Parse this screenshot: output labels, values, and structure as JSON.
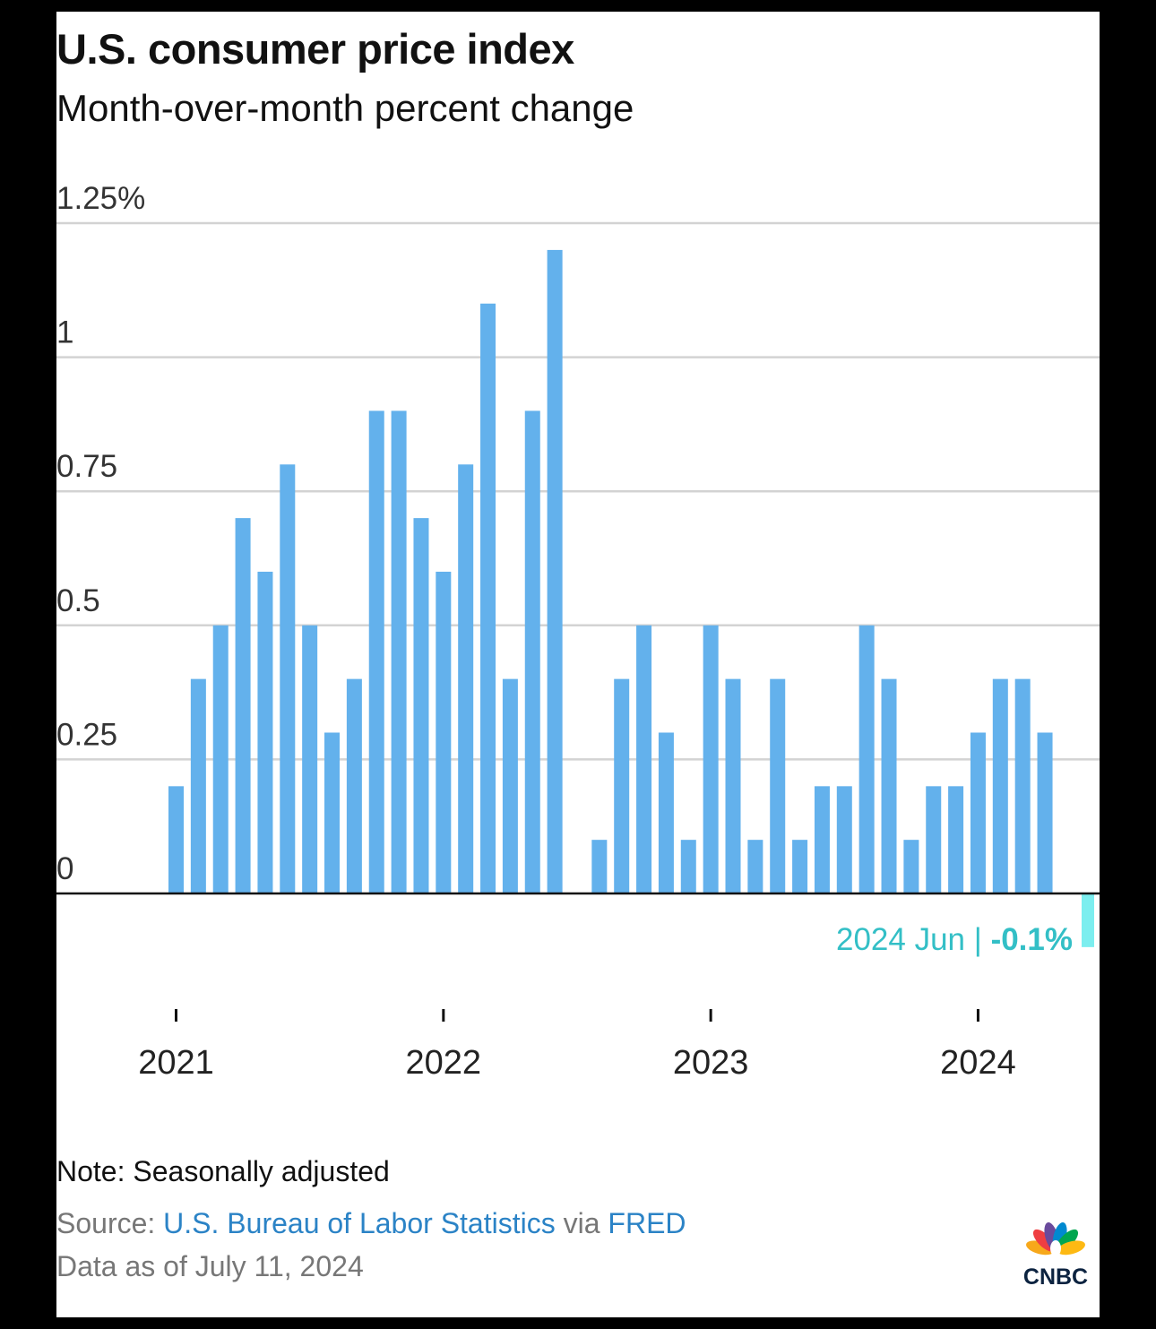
{
  "title": "U.S. consumer price index",
  "subtitle": "Month-over-month percent change",
  "note": "Note: Seasonally adjusted",
  "source": {
    "prefix": "Source: ",
    "agency": "U.S. Bureau of Labor Statistics",
    "via": " via ",
    "fred": "FRED"
  },
  "as_of": "Data as of July 11, 2024",
  "logo_text": "CNBC",
  "colors": {
    "bar": "#63b1ec",
    "highlight": "#7ceeef",
    "highlight_text": "#33bfc6",
    "grid": "#d3d3d3",
    "axis": "#111111"
  },
  "chart_data": {
    "type": "bar",
    "x": [
      "2021-01",
      "2021-02",
      "2021-03",
      "2021-04",
      "2021-05",
      "2021-06",
      "2021-07",
      "2021-08",
      "2021-09",
      "2021-10",
      "2021-11",
      "2021-12",
      "2022-01",
      "2022-02",
      "2022-03",
      "2022-04",
      "2022-05",
      "2022-06",
      "2022-07",
      "2022-08",
      "2022-09",
      "2022-10",
      "2022-11",
      "2022-12",
      "2023-01",
      "2023-02",
      "2023-03",
      "2023-04",
      "2023-05",
      "2023-06",
      "2023-07",
      "2023-08",
      "2023-09",
      "2023-10",
      "2023-11",
      "2023-12",
      "2024-01",
      "2024-02",
      "2024-03",
      "2024-04",
      "2024-05",
      "2024-06"
    ],
    "values": [
      0.2,
      0.4,
      0.5,
      0.7,
      0.6,
      0.8,
      0.5,
      0.3,
      0.4,
      0.9,
      0.9,
      0.7,
      0.6,
      0.8,
      1.1,
      0.4,
      0.9,
      1.2,
      0.0,
      0.1,
      0.4,
      0.5,
      0.3,
      0.1,
      0.5,
      0.4,
      0.1,
      0.4,
      0.1,
      0.2,
      0.2,
      0.5,
      0.4,
      0.1,
      0.2,
      0.2,
      0.3,
      0.4,
      0.4,
      0.3,
      0.0,
      -0.1
    ],
    "ylim": [
      -0.1,
      1.25
    ],
    "yticks": [
      0,
      0.25,
      0.5,
      0.75,
      1,
      1.25
    ],
    "ytick_labels": [
      "0",
      "0.25",
      "0.5",
      "0.75",
      "1",
      "1.25%"
    ],
    "xticks": [
      "2021-01",
      "2022-01",
      "2023-01",
      "2024-01"
    ],
    "xtick_labels": [
      "2021",
      "2022",
      "2023",
      "2024"
    ],
    "grid": true,
    "annotation": {
      "label": "2024 Jun | ",
      "value": "-0.1%"
    }
  }
}
